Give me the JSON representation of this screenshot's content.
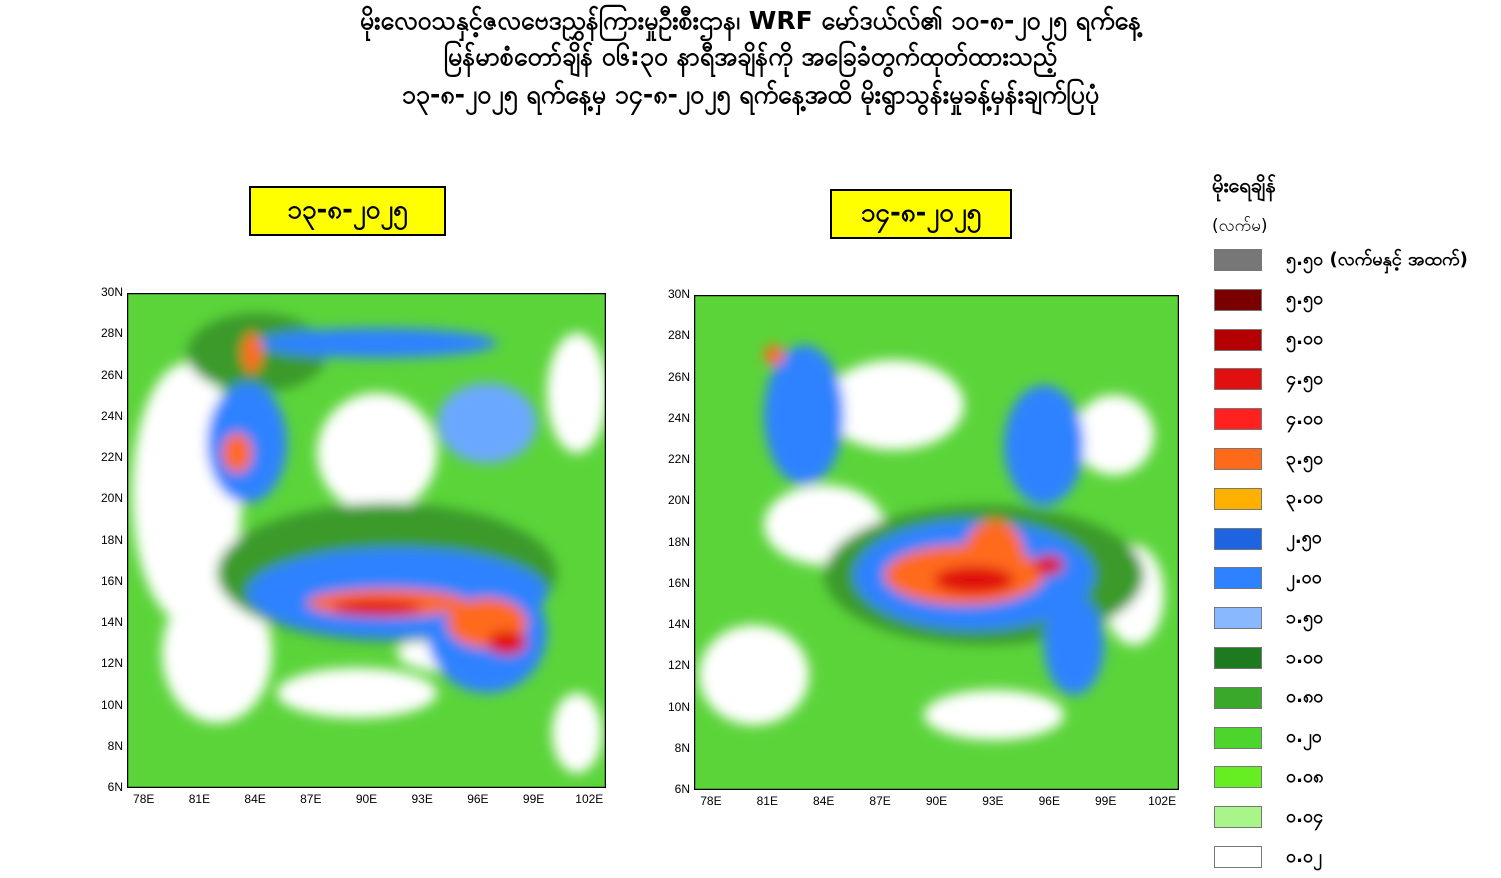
{
  "header": {
    "line1": "မိုးလေဝသနှင့်ဇလဗေဒညွှန်ကြားမှုဦးစီးဌာန၊ WRF မော်ဒယ်လ်၏ ၁၀-၈-၂၀၂၅ ရက်နေ့",
    "line2": "မြန်မာစံတော်ချိန် ၀၆:၃၀ နာရီအချိန်ကို အခြေခံတွက်ထုတ်ထားသည့်",
    "line3": "၁၃-၈-၂၀၂၅ ရက်နေ့မှ ၁၄-၈-၂၀၂၅ ရက်နေ့အထိ မိုးရွာသွန်းမှုခန့်မှန်းချက်ပြပုံ"
  },
  "maps": [
    {
      "date": "၁၃-၈-၂၀၂၅"
    },
    {
      "date": "၁၄-၈-၂၀၂၅"
    }
  ],
  "axes": {
    "lat_labels": [
      "30N",
      "28N",
      "26N",
      "24N",
      "22N",
      "20N",
      "18N",
      "16N",
      "14N",
      "12N",
      "10N",
      "8N",
      "6N"
    ],
    "lon_labels": [
      "78E",
      "81E",
      "84E",
      "87E",
      "90E",
      "93E",
      "96E",
      "99E",
      "102E"
    ]
  },
  "legend": {
    "title": "မိုးရေချိန်",
    "unit": "(လက်မ)",
    "items": [
      {
        "label": "၅.၅၀ (လက်မနှင့် အထက်)",
        "color": "#777777"
      },
      {
        "label": "၅.၅၀",
        "color": "#7a0000"
      },
      {
        "label": "၅.၀၀",
        "color": "#b40000"
      },
      {
        "label": "၄.၅၀",
        "color": "#e01010"
      },
      {
        "label": "၄.၀၀",
        "color": "#ff2020"
      },
      {
        "label": "၃.၅၀",
        "color": "#ff6a1a"
      },
      {
        "label": "၃.၀၀",
        "color": "#ffb000"
      },
      {
        "label": "၂.၅၀",
        "color": "#1e64e0"
      },
      {
        "label": "၂.၀၀",
        "color": "#2f82ff"
      },
      {
        "label": "၁.၅၀",
        "color": "#8ab8ff"
      },
      {
        "label": "၁.၀၀",
        "color": "#1e7a1e"
      },
      {
        "label": "၀.၈၀",
        "color": "#3aa82a"
      },
      {
        "label": "၀.၂၀",
        "color": "#4cd62c"
      },
      {
        "label": "၀.၀၈",
        "color": "#66ee22"
      },
      {
        "label": "၀.၀၄",
        "color": "#a8f58a"
      },
      {
        "label": "၀.၀၂",
        "color": "#ffffff"
      }
    ]
  }
}
